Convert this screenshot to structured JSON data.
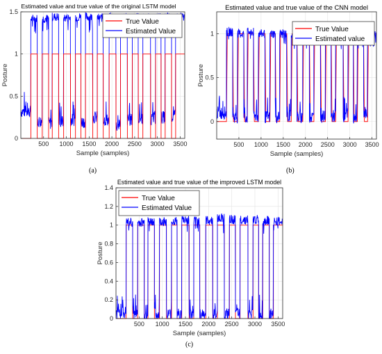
{
  "chart_data": [
    {
      "type": "line",
      "panel_label": "(a)",
      "title": "Estimated value and true value of the original LSTM model",
      "xlabel": "Sample (samples)",
      "ylabel": "Posture",
      "xlim": [
        0,
        3600
      ],
      "ylim": [
        0,
        1.5
      ],
      "xticks": [
        500,
        1000,
        1500,
        2000,
        2500,
        3000,
        3500
      ],
      "yticks": [
        0,
        0.5,
        1,
        1.5
      ],
      "ytick_labels": [
        "0",
        "0.5",
        "1",
        "1.5"
      ],
      "grid": true,
      "legend_position": "top-right",
      "true_shape": "square",
      "series": [
        {
          "name": "True Value",
          "color": "#ff0000",
          "segments": [
            [
              0,
              220,
              0
            ],
            [
              220,
              360,
              1
            ],
            [
              360,
              470,
              0
            ],
            [
              470,
              610,
              1
            ],
            [
              610,
              690,
              0
            ],
            [
              690,
              830,
              1
            ],
            [
              830,
              940,
              0
            ],
            [
              940,
              1090,
              1
            ],
            [
              1090,
              1200,
              0
            ],
            [
              1200,
              1320,
              1
            ],
            [
              1320,
              1420,
              0
            ],
            [
              1420,
              1580,
              1
            ],
            [
              1580,
              1680,
              0
            ],
            [
              1680,
              1810,
              1
            ],
            [
              1810,
              1940,
              0
            ],
            [
              1940,
              2090,
              1
            ],
            [
              2090,
              2190,
              0
            ],
            [
              2190,
              2340,
              1
            ],
            [
              2340,
              2450,
              0
            ],
            [
              2450,
              2580,
              1
            ],
            [
              2580,
              2680,
              0
            ],
            [
              2680,
              2850,
              1
            ],
            [
              2850,
              2960,
              0
            ],
            [
              2960,
              3080,
              1
            ],
            [
              3080,
              3170,
              0
            ],
            [
              3170,
              3310,
              1
            ],
            [
              3310,
              3400,
              0
            ],
            [
              3400,
              3600,
              1
            ]
          ]
        },
        {
          "name": "Estimated Value",
          "color": "#0000ff",
          "segments": [
            [
              0,
              220,
              0.32
            ],
            [
              220,
              360,
              1.42
            ],
            [
              360,
              470,
              0.2
            ],
            [
              470,
              610,
              1.42
            ],
            [
              610,
              690,
              0.18
            ],
            [
              690,
              830,
              1.44
            ],
            [
              830,
              940,
              0.2
            ],
            [
              940,
              1090,
              1.43
            ],
            [
              1090,
              1200,
              0.22
            ],
            [
              1200,
              1320,
              1.44
            ],
            [
              1320,
              1420,
              0.2
            ],
            [
              1420,
              1580,
              1.44
            ],
            [
              1580,
              1680,
              0.25
            ],
            [
              1680,
              1810,
              1.43
            ],
            [
              1810,
              1940,
              0.22
            ],
            [
              1940,
              2090,
              1.44
            ],
            [
              2090,
              2190,
              0.15
            ],
            [
              2190,
              2340,
              1.44
            ],
            [
              2340,
              2450,
              0.22
            ],
            [
              2450,
              2580,
              1.44
            ],
            [
              2580,
              2680,
              0.24
            ],
            [
              2680,
              2850,
              1.43
            ],
            [
              2850,
              2960,
              0.23
            ],
            [
              2960,
              3080,
              1.44
            ],
            [
              3080,
              3170,
              0.25
            ],
            [
              3170,
              3310,
              1.44
            ],
            [
              3310,
              3400,
              0.26
            ],
            [
              3400,
              3600,
              1.44
            ]
          ]
        }
      ]
    },
    {
      "type": "line",
      "panel_label": "(b)",
      "title": "Estimated value and true value of the CNN model",
      "xlabel": "Sample (samples)",
      "ylabel": "Posture",
      "xlim": [
        0,
        3600
      ],
      "ylim": [
        -0.2,
        1.25
      ],
      "xticks": [
        500,
        1000,
        1500,
        2000,
        2500,
        3000,
        3500
      ],
      "yticks": [
        0,
        0.5,
        1
      ],
      "ytick_labels": [
        "0",
        "0.5",
        "1"
      ],
      "grid": true,
      "legend_position": "top-right",
      "true_shape": "sloped",
      "series": [
        {
          "name": "True Value",
          "color": "#ff0000",
          "segments": [
            [
              0,
              220,
              0
            ],
            [
              220,
              360,
              1
            ],
            [
              360,
              470,
              0
            ],
            [
              470,
              610,
              1
            ],
            [
              610,
              690,
              0
            ],
            [
              690,
              830,
              1
            ],
            [
              830,
              940,
              0
            ],
            [
              940,
              1090,
              1
            ],
            [
              1090,
              1200,
              0
            ],
            [
              1200,
              1320,
              1
            ],
            [
              1320,
              1420,
              0
            ],
            [
              1420,
              1580,
              1
            ],
            [
              1580,
              1680,
              0
            ],
            [
              1680,
              1810,
              1
            ],
            [
              1810,
              1940,
              0
            ],
            [
              1940,
              2090,
              1
            ],
            [
              2090,
              2190,
              0
            ],
            [
              2190,
              2340,
              1
            ],
            [
              2340,
              2450,
              0
            ],
            [
              2450,
              2580,
              1
            ],
            [
              2580,
              2680,
              0
            ],
            [
              2680,
              2850,
              1
            ],
            [
              2850,
              2960,
              0
            ],
            [
              2960,
              3080,
              1
            ],
            [
              3080,
              3170,
              0
            ],
            [
              3170,
              3310,
              1
            ],
            [
              3310,
              3400,
              0
            ],
            [
              3400,
              3600,
              1
            ]
          ]
        },
        {
          "name": "Estimated value",
          "color": "#0000ff",
          "segments": [
            [
              0,
              220,
              0.1
            ],
            [
              220,
              360,
              1.02
            ],
            [
              360,
              470,
              0.05
            ],
            [
              470,
              610,
              1.0
            ],
            [
              610,
              690,
              0.05
            ],
            [
              690,
              830,
              1.02
            ],
            [
              830,
              940,
              0.06
            ],
            [
              940,
              1090,
              1.0
            ],
            [
              1090,
              1200,
              0.05
            ],
            [
              1200,
              1320,
              1.0
            ],
            [
              1320,
              1420,
              0.05
            ],
            [
              1420,
              1580,
              1.0
            ],
            [
              1580,
              1680,
              0.06
            ],
            [
              1680,
              1810,
              0.98
            ],
            [
              1810,
              1940,
              0.05
            ],
            [
              1940,
              2090,
              1.0
            ],
            [
              2090,
              2190,
              0.05
            ],
            [
              2190,
              2340,
              1.0
            ],
            [
              2340,
              2450,
              0.05
            ],
            [
              2450,
              2580,
              1.0
            ],
            [
              2580,
              2680,
              0.06
            ],
            [
              2680,
              2850,
              1.0
            ],
            [
              2850,
              2960,
              0.06
            ],
            [
              2960,
              3080,
              1.0
            ],
            [
              3080,
              3170,
              0.05
            ],
            [
              3170,
              3310,
              1.0
            ],
            [
              3310,
              3400,
              0.1
            ],
            [
              3400,
              3600,
              0.98
            ]
          ]
        }
      ]
    },
    {
      "type": "line",
      "panel_label": "(c)",
      "title": "Estimated value and true value of the improved LSTM model",
      "xlabel": "Sample (samples)",
      "ylabel": "Posture",
      "xlim": [
        0,
        3600
      ],
      "ylim": [
        0,
        1.4
      ],
      "xticks": [
        500,
        1000,
        1500,
        2000,
        2500,
        3000,
        3500
      ],
      "yticks": [
        0,
        0.2,
        0.4,
        0.6,
        0.8,
        1,
        1.2,
        1.4
      ],
      "ytick_labels": [
        "0",
        "0.2",
        "0.4",
        "0.6",
        "0.8",
        "1",
        "1.2",
        "1.4"
      ],
      "grid": true,
      "legend_position": "top-left",
      "true_shape": "square",
      "series": [
        {
          "name": "True Value",
          "color": "#ff0000",
          "segments": [
            [
              0,
              220,
              0
            ],
            [
              220,
              360,
              1
            ],
            [
              360,
              470,
              0
            ],
            [
              470,
              610,
              1
            ],
            [
              610,
              690,
              0
            ],
            [
              690,
              830,
              1
            ],
            [
              830,
              940,
              0
            ],
            [
              940,
              1090,
              1
            ],
            [
              1090,
              1200,
              0
            ],
            [
              1200,
              1320,
              1
            ],
            [
              1320,
              1420,
              0
            ],
            [
              1420,
              1580,
              1
            ],
            [
              1580,
              1680,
              0
            ],
            [
              1680,
              1810,
              1
            ],
            [
              1810,
              1940,
              0
            ],
            [
              1940,
              2090,
              1
            ],
            [
              2090,
              2190,
              0
            ],
            [
              2190,
              2340,
              1
            ],
            [
              2340,
              2450,
              0
            ],
            [
              2450,
              2580,
              1
            ],
            [
              2580,
              2680,
              0
            ],
            [
              2680,
              2850,
              1
            ],
            [
              2850,
              2960,
              0
            ],
            [
              2960,
              3080,
              1
            ],
            [
              3080,
              3170,
              0
            ],
            [
              3170,
              3310,
              1
            ],
            [
              3310,
              3400,
              0
            ],
            [
              3400,
              3600,
              1
            ]
          ]
        },
        {
          "name": "Estimated Value",
          "color": "#0000ff",
          "segments": [
            [
              0,
              220,
              0.06
            ],
            [
              220,
              360,
              1.03
            ],
            [
              360,
              470,
              0.04
            ],
            [
              470,
              610,
              1.03
            ],
            [
              610,
              690,
              0.04
            ],
            [
              690,
              830,
              1.04
            ],
            [
              830,
              940,
              0.04
            ],
            [
              940,
              1090,
              1.04
            ],
            [
              1090,
              1200,
              0.04
            ],
            [
              1200,
              1320,
              1.04
            ],
            [
              1320,
              1420,
              0.04
            ],
            [
              1420,
              1580,
              1.06
            ],
            [
              1580,
              1680,
              0.04
            ],
            [
              1680,
              1810,
              1.05
            ],
            [
              1810,
              1940,
              0.05
            ],
            [
              1940,
              2090,
              1.05
            ],
            [
              2090,
              2190,
              0.04
            ],
            [
              2190,
              2340,
              1.08
            ],
            [
              2340,
              2450,
              0.04
            ],
            [
              2450,
              2580,
              1.06
            ],
            [
              2580,
              2680,
              0.04
            ],
            [
              2680,
              2850,
              1.06
            ],
            [
              2850,
              2960,
              0.04
            ],
            [
              2960,
              3080,
              1.06
            ],
            [
              3080,
              3170,
              0.04
            ],
            [
              3170,
              3310,
              1.05
            ],
            [
              3310,
              3400,
              0.04
            ],
            [
              3400,
              3600,
              1.04
            ]
          ]
        }
      ]
    }
  ]
}
